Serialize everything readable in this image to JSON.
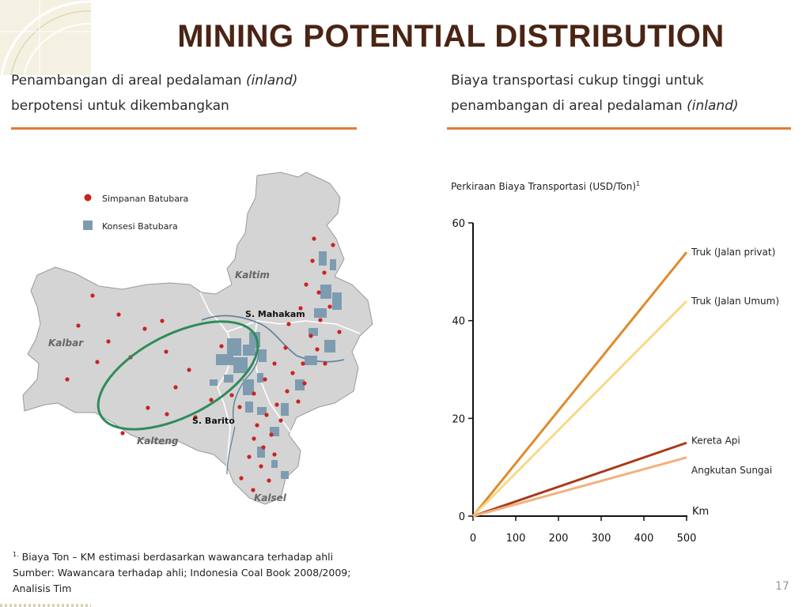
{
  "title": "MINING POTENTIAL DISTRIBUTION",
  "left_panel": {
    "heading_line1_prefix": "Penambangan di areal pedalaman ",
    "heading_line1_italic": "(inland)",
    "heading_line2": "berpotensi untuk dikembangkan",
    "legend": [
      {
        "label": "Simpanan Batubara",
        "icon": "red-dot-icon",
        "color": "#cc2222"
      },
      {
        "label": "Konsesi Batubara",
        "icon": "blue-square-icon",
        "color": "#7d9cb0"
      }
    ],
    "map_labels": [
      "Kaltim",
      "S. Mahakam",
      "Kalbar",
      "S. Barito",
      "Kalteng",
      "Kalsel"
    ]
  },
  "right_panel": {
    "heading_line1": "Biaya transportasi cukup tinggi untuk",
    "heading_line2_prefix": "penambangan di areal pedalaman ",
    "heading_line2_italic": "(inland)",
    "chart_title": "Perkiraan Biaya Transportasi (USD/Ton)",
    "chart_title_sup": "1"
  },
  "chart_data": {
    "type": "line",
    "x": [
      0,
      500
    ],
    "xlabel": "Km",
    "x_ticks": [
      "0",
      "100",
      "200",
      "300",
      "400",
      "500"
    ],
    "y_ticks": [
      "0",
      "20",
      "40",
      "60"
    ],
    "xlim": [
      0,
      500
    ],
    "ylim": [
      0,
      60
    ],
    "grid": false,
    "series": [
      {
        "name": "Truk (Jalan privat)",
        "values": [
          0,
          54
        ],
        "color": "#e08a2c"
      },
      {
        "name": "Truk (Jalan Umum)",
        "values": [
          0,
          44
        ],
        "color": "#f8d98a"
      },
      {
        "name": "Kereta Api",
        "values": [
          0,
          15
        ],
        "color": "#a83a18"
      },
      {
        "name": "Angkutan Sungai",
        "values": [
          0,
          12
        ],
        "color": "#f2b07e"
      }
    ]
  },
  "footnote": {
    "marker": "1.",
    "line1": "Biaya Ton – KM estimasi berdasarkan wawancara terhadap ahli",
    "line2": "Sumber: Wawancara terhadap ahli; Indonesia Coal Book 2008/2009;",
    "line3": "Analisis Tim"
  },
  "page_number": "17"
}
